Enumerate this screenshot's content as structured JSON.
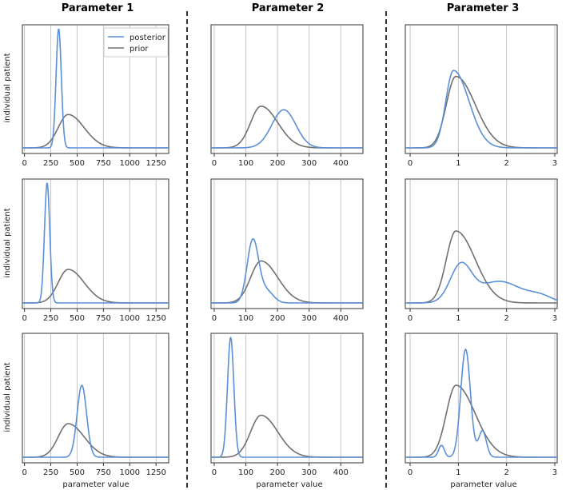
{
  "figure": {
    "column_titles": [
      "Parameter 1",
      "Parameter 2",
      "Parameter 3"
    ],
    "row_ylabel": "individual patient",
    "xlabel": "parameter value",
    "legend": [
      "posterior",
      "prior"
    ],
    "colors": {
      "posterior": "#5b8fd9",
      "prior": "#707070"
    }
  },
  "chart_data": [
    {
      "type": "line",
      "row": 0,
      "col": 0,
      "xlim": [
        -20,
        1370
      ],
      "xticks": [
        0,
        250,
        500,
        750,
        1000,
        1250
      ],
      "series": [
        {
          "name": "posterior",
          "peaks": [
            {
              "mu": 325,
              "sigma": 25,
              "amp": 1.0
            }
          ]
        },
        {
          "name": "prior",
          "peaks": [
            {
              "mu": 415,
              "sigma": 95,
              "amp": 0.28,
              "skew": 1.6
            }
          ]
        }
      ]
    },
    {
      "type": "line",
      "row": 0,
      "col": 1,
      "xlim": [
        -10,
        470
      ],
      "xticks": [
        0,
        100,
        200,
        300,
        400
      ],
      "series": [
        {
          "name": "posterior",
          "peaks": [
            {
              "mu": 220,
              "sigma": 38,
              "amp": 0.32
            }
          ]
        },
        {
          "name": "prior",
          "peaks": [
            {
              "mu": 148,
              "sigma": 33,
              "amp": 0.35,
              "skew": 1.6
            }
          ]
        }
      ]
    },
    {
      "type": "line",
      "row": 0,
      "col": 2,
      "xlim": [
        -0.1,
        3.05
      ],
      "xticks": [
        0,
        1,
        2,
        3
      ],
      "series": [
        {
          "name": "posterior",
          "peaks": [
            {
              "mu": 0.9,
              "sigma": 0.16,
              "amp": 0.65,
              "skew": 2.0
            }
          ]
        },
        {
          "name": "prior",
          "peaks": [
            {
              "mu": 0.95,
              "sigma": 0.2,
              "amp": 0.6,
              "skew": 2.0
            }
          ]
        }
      ]
    },
    {
      "type": "line",
      "row": 1,
      "col": 0,
      "xlim": [
        -20,
        1370
      ],
      "xticks": [
        0,
        250,
        500,
        750,
        1000,
        1250
      ],
      "series": [
        {
          "name": "posterior",
          "peaks": [
            {
              "mu": 215,
              "sigma": 25,
              "amp": 1.0
            }
          ]
        },
        {
          "name": "prior",
          "peaks": [
            {
              "mu": 415,
              "sigma": 95,
              "amp": 0.28,
              "skew": 1.6
            }
          ]
        }
      ]
    },
    {
      "type": "line",
      "row": 1,
      "col": 1,
      "xlim": [
        -10,
        470
      ],
      "xticks": [
        0,
        100,
        200,
        300,
        400
      ],
      "series": [
        {
          "name": "posterior",
          "peaks": [
            {
              "mu": 122,
              "sigma": 18,
              "amp": 0.52
            },
            {
              "mu": 165,
              "sigma": 22,
              "amp": 0.1
            }
          ]
        },
        {
          "name": "prior",
          "peaks": [
            {
              "mu": 148,
              "sigma": 33,
              "amp": 0.35,
              "skew": 1.6
            }
          ]
        }
      ]
    },
    {
      "type": "line",
      "row": 1,
      "col": 2,
      "xlim": [
        -0.1,
        3.05
      ],
      "xticks": [
        0,
        1,
        2,
        3
      ],
      "series": [
        {
          "name": "posterior",
          "peaks": [
            {
              "mu": 1.05,
              "sigma": 0.22,
              "amp": 0.3
            },
            {
              "mu": 1.85,
              "sigma": 0.45,
              "amp": 0.18
            },
            {
              "mu": 2.7,
              "sigma": 0.25,
              "amp": 0.05
            }
          ]
        },
        {
          "name": "prior",
          "peaks": [
            {
              "mu": 0.95,
              "sigma": 0.2,
              "amp": 0.6,
              "skew": 2.0
            }
          ]
        }
      ]
    },
    {
      "type": "line",
      "row": 2,
      "col": 0,
      "xlim": [
        -20,
        1370
      ],
      "xticks": [
        0,
        250,
        500,
        750,
        1000,
        1250
      ],
      "series": [
        {
          "name": "posterior",
          "peaks": [
            {
              "mu": 545,
              "sigma": 45,
              "amp": 0.6
            }
          ]
        },
        {
          "name": "prior",
          "peaks": [
            {
              "mu": 415,
              "sigma": 95,
              "amp": 0.28,
              "skew": 1.6
            }
          ]
        }
      ]
    },
    {
      "type": "line",
      "row": 2,
      "col": 1,
      "xlim": [
        -10,
        470
      ],
      "xticks": [
        0,
        100,
        200,
        300,
        400
      ],
      "series": [
        {
          "name": "posterior",
          "peaks": [
            {
              "mu": 52,
              "sigma": 10,
              "amp": 1.0
            }
          ]
        },
        {
          "name": "prior",
          "peaks": [
            {
              "mu": 148,
              "sigma": 33,
              "amp": 0.35,
              "skew": 1.6
            }
          ]
        }
      ]
    },
    {
      "type": "line",
      "row": 2,
      "col": 2,
      "xlim": [
        -0.1,
        3.05
      ],
      "xticks": [
        0,
        1,
        2,
        3
      ],
      "series": [
        {
          "name": "posterior",
          "peaks": [
            {
              "mu": 1.15,
              "sigma": 0.1,
              "amp": 0.9
            },
            {
              "mu": 1.5,
              "sigma": 0.08,
              "amp": 0.22
            },
            {
              "mu": 0.65,
              "sigma": 0.06,
              "amp": 0.1
            }
          ]
        },
        {
          "name": "prior",
          "peaks": [
            {
              "mu": 0.95,
              "sigma": 0.2,
              "amp": 0.6,
              "skew": 2.0
            }
          ]
        }
      ]
    }
  ]
}
